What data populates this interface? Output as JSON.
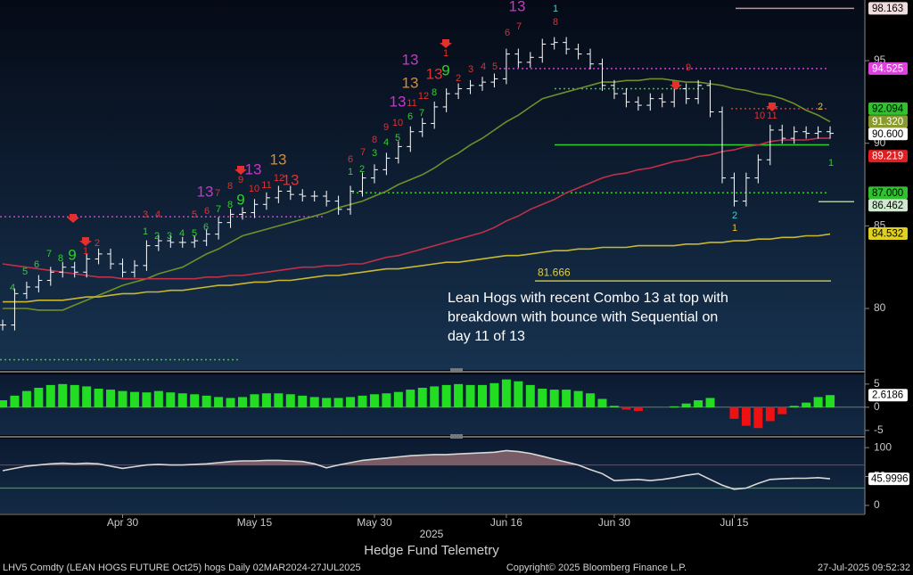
{
  "chart_data": [
    {
      "type": "line",
      "categories": [
        null,
        null,
        null,
        null,
        null,
        null,
        null,
        null,
        null,
        null,
        "Apr 30",
        null,
        null,
        null,
        null,
        null,
        null,
        null,
        null,
        null,
        null,
        "May 15",
        null,
        null,
        null,
        null,
        null,
        null,
        null,
        null,
        null,
        "May 30",
        null,
        null,
        null,
        null,
        null,
        null,
        null,
        null,
        null,
        null,
        "Jun 16",
        null,
        null,
        null,
        null,
        null,
        null,
        null,
        null,
        "Jun 30",
        null,
        null,
        null,
        null,
        null,
        null,
        null,
        null,
        null,
        "Jul 15",
        null,
        null,
        null,
        null,
        null,
        null,
        null,
        null
      ],
      "ylim": [
        76.28,
        98.67
      ],
      "yticks": [
        80,
        85,
        90,
        95
      ],
      "series": [
        {
          "style": "bars",
          "color": "#ffffff",
          "values": [
            79.0,
            80.9,
            81.3,
            81.7,
            82.2,
            82.5,
            82.2,
            83.0,
            83.3,
            82.7,
            82.2,
            82.6,
            83.8,
            84.1,
            84.0,
            84.0,
            84.1,
            84.5,
            85.2,
            85.7,
            85.8,
            86.3,
            86.7,
            87.1,
            86.9,
            86.8,
            86.8,
            86.5,
            86.0,
            87.1,
            87.9,
            88.4,
            89.1,
            89.8,
            90.7,
            91.2,
            92.2,
            93.0,
            93.3,
            93.5,
            93.7,
            93.9,
            95.4,
            94.9,
            95.2,
            96.0,
            96.1,
            95.7,
            95.4,
            94.8,
            93.5,
            93.0,
            92.5,
            92.3,
            92.7,
            92.5,
            93.3,
            92.7,
            93.5,
            91.9,
            87.9,
            86.5,
            87.9,
            89.0,
            90.8,
            90.3,
            90.7,
            90.6,
            90.7,
            90.6
          ]
        },
        {
          "style": "line",
          "color": "#6f8f2a",
          "values": [
            80.0,
            80.0,
            80.0,
            79.9,
            79.9,
            79.9,
            80.2,
            80.5,
            80.8,
            81.1,
            81.4,
            81.6,
            81.8,
            82.1,
            82.3,
            82.5,
            82.9,
            83.3,
            83.6,
            84.0,
            84.4,
            84.6,
            84.8,
            85.0,
            85.2,
            85.4,
            85.6,
            85.8,
            86.1,
            86.3,
            86.5,
            86.8,
            87.1,
            87.5,
            87.8,
            88.1,
            88.5,
            89.0,
            89.4,
            89.9,
            90.3,
            90.8,
            91.3,
            91.7,
            92.2,
            92.7,
            92.9,
            93.1,
            93.3,
            93.5,
            93.7,
            93.7,
            93.8,
            93.8,
            93.9,
            93.9,
            93.8,
            93.7,
            93.7,
            93.6,
            93.5,
            93.3,
            93.2,
            93.0,
            92.9,
            92.7,
            92.4,
            92.0,
            91.7,
            91.3
          ]
        },
        {
          "style": "line",
          "color": "#c03048",
          "values": [
            82.7,
            82.6,
            82.5,
            82.4,
            82.3,
            82.2,
            82.1,
            82.0,
            81.9,
            81.9,
            81.8,
            81.8,
            81.8,
            81.8,
            81.8,
            81.8,
            81.8,
            81.9,
            81.9,
            82.0,
            82.0,
            82.1,
            82.2,
            82.3,
            82.4,
            82.5,
            82.5,
            82.6,
            82.6,
            82.7,
            82.7,
            82.9,
            83.1,
            83.2,
            83.4,
            83.6,
            83.8,
            84.0,
            84.2,
            84.4,
            84.6,
            84.9,
            85.3,
            85.6,
            86.0,
            86.3,
            86.6,
            87.0,
            87.3,
            87.6,
            87.9,
            88.1,
            88.2,
            88.4,
            88.5,
            88.7,
            88.9,
            89.0,
            89.2,
            89.3,
            89.5,
            89.6,
            89.8,
            89.9,
            90.1,
            90.2,
            90.2,
            90.2,
            90.3,
            90.3
          ]
        },
        {
          "style": "line",
          "color": "#c8b830",
          "values": [
            80.4,
            80.4,
            80.4,
            80.5,
            80.5,
            80.5,
            80.6,
            80.7,
            80.7,
            80.8,
            80.9,
            80.9,
            81.0,
            81.0,
            81.1,
            81.1,
            81.2,
            81.3,
            81.4,
            81.4,
            81.5,
            81.6,
            81.6,
            81.7,
            81.7,
            81.8,
            81.9,
            82.0,
            82.0,
            82.1,
            82.2,
            82.3,
            82.4,
            82.4,
            82.5,
            82.6,
            82.7,
            82.8,
            82.8,
            82.9,
            83.0,
            83.1,
            83.2,
            83.2,
            83.3,
            83.4,
            83.5,
            83.5,
            83.6,
            83.6,
            83.7,
            83.7,
            83.7,
            83.8,
            83.8,
            83.8,
            83.8,
            83.9,
            83.9,
            84.0,
            84.0,
            84.1,
            84.1,
            84.2,
            84.2,
            84.3,
            84.3,
            84.4,
            84.4,
            84.5
          ]
        }
      ],
      "levels": [
        {
          "value": 98.163,
          "color": "#c89090",
          "dashed": false
        },
        {
          "value": 94.525,
          "color": "#d040d0",
          "dashed": true
        },
        {
          "value": 92.094,
          "color": "#e03030",
          "dashed": true
        },
        {
          "value": 87.0,
          "color": "#30d030",
          "dashed": true
        },
        {
          "value": 86.462,
          "color": "#a8c8a8",
          "dashed": false
        },
        {
          "value": 81.666,
          "color": "#c8c040",
          "dashed": false
        },
        {
          "value": 85.55,
          "color": "#d040d0",
          "dashed": true
        },
        {
          "value": 76.9,
          "color": "#30d030",
          "dashed": true
        },
        {
          "value": 89.9,
          "color": "#30d030",
          "dashed": false
        },
        {
          "value": 93.3,
          "color": "#30d030",
          "dashed": true
        }
      ],
      "price_labels": [
        {
          "value": 98.163,
          "color": "#f0dcdc",
          "text_color": "#000000"
        },
        {
          "value": 94.525,
          "color": "#e040e0",
          "text_color": "#ffffff"
        },
        {
          "value": 92.094,
          "color": "#30c030",
          "text_color": "#000000"
        },
        {
          "value": 91.32,
          "label": "91.320",
          "color": "#8a9a30",
          "text_color": "#ffffff"
        },
        {
          "value": 90.6,
          "label": "90.600",
          "color": "#ffffff",
          "text_color": "#000000"
        },
        {
          "value": 89.219,
          "color": "#e02020",
          "text_color": "#ffffff"
        },
        {
          "value": 87.0,
          "label": "87.000",
          "color": "#30c030",
          "text_color": "#000000"
        },
        {
          "value": 86.462,
          "color": "#d0e8d0",
          "text_color": "#000000"
        },
        {
          "value": 84.532,
          "color": "#e0d020",
          "text_color": "#000000"
        }
      ],
      "counts": [
        {
          "color": "#2ed02e",
          "labels": [
            "4",
            "5",
            "6",
            "7",
            "8",
            "9"
          ]
        },
        {
          "color": "#e03030",
          "labels": [
            "1",
            "2"
          ]
        },
        {
          "color": "#2ed02e",
          "labels": [
            "1",
            "2",
            "3",
            "4",
            "5",
            "6",
            "7",
            "8",
            "9"
          ]
        },
        {
          "color": "#e03030",
          "labels": [
            "3",
            "4",
            "5",
            "6",
            "7",
            "8",
            "9",
            "10",
            "11",
            "12",
            "13"
          ]
        },
        {
          "color": "#cc33cc",
          "labels": [
            "13",
            "13",
            "13",
            "13",
            "13"
          ]
        },
        {
          "color": "#e08a20",
          "labels": [
            "13",
            "13"
          ]
        },
        {
          "color": "#2ed02e",
          "labels": [
            "1",
            "2",
            "3",
            "4",
            "5",
            "6",
            "7",
            "8",
            "9",
            "1"
          ]
        },
        {
          "color": "#e03030",
          "labels": [
            "6",
            "7",
            "8",
            "9",
            "10",
            "11",
            "12",
            "13",
            "1",
            "2",
            "3",
            "4",
            "5",
            "6",
            "7",
            "8",
            "9",
            "10",
            "11"
          ]
        },
        {
          "color": "#40d0d0",
          "labels": [
            "1",
            "2"
          ]
        },
        {
          "color": "#e0c040",
          "labels": [
            "1",
            "2"
          ]
        }
      ],
      "annotation": [
        "Lean Hogs with recent Combo 13 at top with",
        "breakdown with bounce with Sequential on",
        "day 11 of 13"
      ]
    },
    {
      "type": "bar",
      "up_color": "#22dd22",
      "down_color": "#ee1111",
      "ylim": [
        -6,
        6.7
      ],
      "yticks": [
        -5,
        0,
        5
      ],
      "values": [
        1.5,
        2.5,
        3.5,
        4.2,
        4.8,
        5.0,
        4.8,
        4.5,
        4.0,
        3.8,
        3.5,
        3.3,
        3.2,
        3.5,
        3.2,
        3.0,
        2.8,
        2.5,
        2.2,
        2.0,
        2.2,
        2.8,
        3.0,
        3.0,
        2.8,
        2.5,
        2.2,
        2.0,
        2.0,
        2.2,
        2.5,
        2.8,
        3.0,
        3.3,
        3.8,
        4.2,
        4.5,
        4.8,
        5.0,
        4.8,
        4.8,
        5.2,
        6.0,
        5.6,
        4.8,
        4.0,
        3.8,
        3.8,
        3.5,
        3.0,
        1.8,
        0.3,
        -0.5,
        -0.8,
        0,
        0,
        0.2,
        0.8,
        1.5,
        2.0,
        0,
        -2.5,
        -4.0,
        -4.5,
        -3.0,
        -1.5,
        0.3,
        1.0,
        2.2,
        2.6186
      ]
    },
    {
      "type": "line",
      "ylim": [
        -14,
        115.6
      ],
      "yticks": [
        0,
        50,
        100
      ],
      "xlabel": "2025",
      "series": [
        {
          "color": "#d8d8d8",
          "values": [
            60,
            64,
            68,
            70,
            72,
            73,
            72,
            73,
            72,
            68,
            64,
            67,
            70,
            71,
            70,
            70,
            71,
            72,
            74,
            76,
            77,
            77,
            78,
            78,
            77,
            76,
            72,
            65,
            70,
            74,
            78,
            80,
            82,
            84,
            86,
            87,
            88,
            88,
            89,
            90,
            91,
            92,
            95,
            93,
            90,
            85,
            80,
            75,
            70,
            62,
            55,
            43,
            44,
            45,
            43,
            45,
            48,
            52,
            55,
            45,
            35,
            28,
            30,
            38,
            45,
            46,
            47,
            47,
            48,
            45.9996
          ]
        }
      ],
      "levels": [
        {
          "value": 70,
          "color": "#c02030"
        },
        {
          "value": 30,
          "color": "#20b020"
        }
      ],
      "fill_color": "#d09090"
    }
  ],
  "watermark": "Hedge Fund Telemetry",
  "footer": {
    "left": "LHV5 Comdty (LEAN HOGS FUTURE  Oct25) hogs  Daily 02MAR2024-27JUL2025",
    "center": "Copyright© 2025 Bloomberg Finance L.P.",
    "right": "27-Jul-2025 09:52:32"
  }
}
